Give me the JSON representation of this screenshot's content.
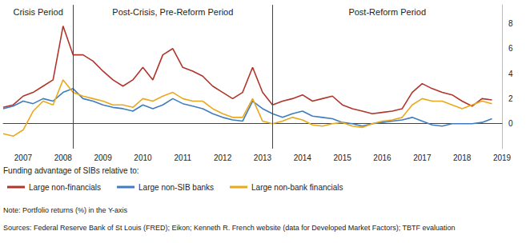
{
  "chart_data": {
    "type": "line",
    "legend_title": "Funding advantage of SIBs relative to:",
    "notes": [
      "Note: Portfolio returns (%) in the Y-axis",
      "Sources: Federal Reserve Bank of St Louis (FRED); Eikon; Kenneth R. French website (data for Developed Market Factors); TBTF evaluation"
    ],
    "periods": [
      {
        "label": "Crisis Period",
        "start": 2007,
        "end": 2008.75
      },
      {
        "label": "Post-Crisis, Pre-Reform Period",
        "start": 2008.75,
        "end": 2013.75
      },
      {
        "label": "Post-Reform Period",
        "start": 2013.75,
        "end": 2019.5
      }
    ],
    "x": [
      2007,
      2007.25,
      2007.5,
      2007.75,
      2008,
      2008.25,
      2008.5,
      2008.75,
      2009,
      2009.25,
      2009.5,
      2009.75,
      2010,
      2010.25,
      2010.5,
      2010.75,
      2011,
      2011.25,
      2011.5,
      2011.75,
      2012,
      2012.25,
      2012.5,
      2012.75,
      2013,
      2013.25,
      2013.5,
      2013.75,
      2014,
      2014.25,
      2014.5,
      2014.75,
      2015,
      2015.25,
      2015.5,
      2015.75,
      2016,
      2016.25,
      2016.5,
      2016.75,
      2017,
      2017.25,
      2017.5,
      2017.75,
      2018,
      2018.25,
      2018.5,
      2018.75,
      2019,
      2019.25
    ],
    "series": [
      {
        "name": "Large non-financials",
        "color": "#b0352b",
        "values": [
          1.3,
          1.5,
          2.2,
          2.5,
          3.0,
          3.5,
          7.8,
          5.5,
          5.5,
          5.0,
          4.2,
          3.5,
          3.0,
          3.5,
          4.5,
          3.5,
          5.5,
          6.0,
          4.5,
          4.2,
          3.8,
          3.0,
          2.5,
          2.0,
          2.5,
          4.5,
          2.5,
          1.5,
          1.8,
          2.0,
          2.3,
          1.8,
          2.0,
          2.2,
          1.5,
          1.2,
          1.0,
          0.8,
          0.9,
          1.0,
          1.2,
          2.5,
          3.2,
          2.8,
          2.5,
          2.3,
          1.8,
          1.4,
          2.0,
          1.9
        ]
      },
      {
        "name": "Large non-SIB banks",
        "color": "#3f7cc0",
        "values": [
          1.2,
          1.4,
          1.8,
          1.6,
          2.0,
          1.8,
          2.5,
          2.8,
          2.0,
          1.8,
          1.5,
          1.3,
          1.2,
          1.0,
          1.5,
          1.2,
          1.5,
          2.0,
          1.6,
          1.4,
          1.2,
          0.8,
          0.5,
          0.3,
          0.2,
          1.8,
          1.2,
          0.8,
          0.5,
          0.8,
          1.0,
          0.6,
          0.5,
          0.4,
          0.1,
          0.0,
          -0.2,
          0.0,
          0.1,
          0.2,
          0.3,
          0.5,
          0.2,
          -0.1,
          -0.2,
          0.0,
          0.0,
          0.0,
          0.1,
          0.4
        ]
      },
      {
        "name": "Large non-bank financials",
        "color": "#eaa91c",
        "values": [
          -0.8,
          -1.0,
          -0.5,
          1.0,
          1.8,
          1.5,
          3.5,
          2.5,
          2.2,
          2.0,
          1.8,
          1.5,
          1.5,
          1.3,
          2.0,
          1.8,
          2.2,
          2.5,
          2.0,
          1.8,
          1.8,
          1.2,
          0.8,
          0.5,
          0.5,
          2.0,
          0.2,
          0.0,
          0.2,
          0.5,
          0.3,
          -0.1,
          -0.2,
          0.0,
          0.1,
          -0.2,
          -0.3,
          0.0,
          0.2,
          0.3,
          0.5,
          1.5,
          2.0,
          1.8,
          1.8,
          1.5,
          1.2,
          1.5,
          1.8,
          1.6
        ]
      }
    ],
    "xlim": [
      2007,
      2019.5
    ],
    "xticks": [
      {
        "value": 2007.5,
        "label": "2007"
      },
      {
        "value": 2008.5,
        "label": "2008"
      },
      {
        "value": 2009.5,
        "label": "2009"
      },
      {
        "value": 2010.5,
        "label": "2010"
      },
      {
        "value": 2011.5,
        "label": "2011"
      },
      {
        "value": 2012.5,
        "label": "2012"
      },
      {
        "value": 2013.5,
        "label": "2013"
      },
      {
        "value": 2014.5,
        "label": "2014"
      },
      {
        "value": 2015.5,
        "label": "2015"
      },
      {
        "value": 2016.5,
        "label": "2016"
      },
      {
        "value": 2017.5,
        "label": "2017"
      },
      {
        "value": 2018.5,
        "label": "2018"
      },
      {
        "value": 2019.5,
        "label": "2019"
      }
    ],
    "ylim": [
      -2,
      9.5
    ],
    "yticks": [
      0,
      2,
      4,
      6,
      8
    ],
    "grid": false,
    "legend": "bottom"
  }
}
